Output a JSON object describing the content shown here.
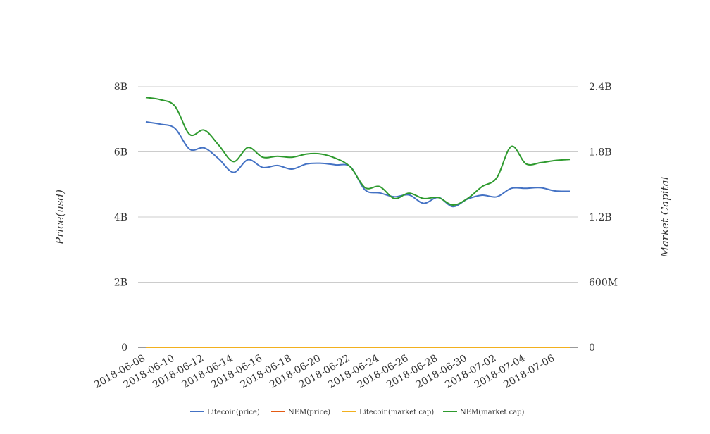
{
  "chart_data": {
    "type": "line",
    "title": "",
    "x": [
      "2018-06-08",
      "2018-06-09",
      "2018-06-10",
      "2018-06-11",
      "2018-06-12",
      "2018-06-13",
      "2018-06-14",
      "2018-06-15",
      "2018-06-16",
      "2018-06-17",
      "2018-06-18",
      "2018-06-19",
      "2018-06-20",
      "2018-06-21",
      "2018-06-22",
      "2018-06-23",
      "2018-06-24",
      "2018-06-25",
      "2018-06-26",
      "2018-06-27",
      "2018-06-28",
      "2018-06-29",
      "2018-06-30",
      "2018-07-01",
      "2018-07-02",
      "2018-07-03",
      "2018-07-04",
      "2018-07-05",
      "2018-07-06",
      "2018-07-07"
    ],
    "x_tick_labels": [
      "2018-06-08",
      "2018-06-10",
      "2018-06-12",
      "2018-06-14",
      "2018-06-16",
      "2018-06-18",
      "2018-06-20",
      "2018-06-22",
      "2018-06-24",
      "2018-06-26",
      "2018-06-28",
      "2018-06-30",
      "2018-07-02",
      "2018-07-04",
      "2018-07-06"
    ],
    "y_left": {
      "label": "Price(usd)",
      "ticks": [
        "0",
        "2B",
        "4B",
        "6B",
        "8B"
      ],
      "range": [
        0,
        8000000000
      ]
    },
    "y_right": {
      "label": "Market Capital",
      "ticks": [
        "0",
        "600M",
        "1.2B",
        "1.8B",
        "2.4B"
      ],
      "range": [
        0,
        2400000000
      ]
    },
    "grid": true,
    "legend_position": "bottom",
    "series": [
      {
        "name": "Litecoin(price)",
        "axis": "left",
        "color": "#4472C4",
        "values": [
          6920000000.0,
          6850000000.0,
          6720000000.0,
          6080000000.0,
          6120000000.0,
          5780000000.0,
          5370000000.0,
          5760000000.0,
          5520000000.0,
          5580000000.0,
          5470000000.0,
          5630000000.0,
          5650000000.0,
          5600000000.0,
          5540000000.0,
          4830000000.0,
          4740000000.0,
          4620000000.0,
          4680000000.0,
          4420000000.0,
          4600000000.0,
          4320000000.0,
          4550000000.0,
          4670000000.0,
          4620000000.0,
          4880000000.0,
          4880000000.0,
          4900000000.0,
          4800000000.0,
          4790000000.0
        ]
      },
      {
        "name": "NEM(price)",
        "axis": "left",
        "color": "#E45B13",
        "values": [
          0,
          0,
          0,
          0,
          0,
          0,
          0,
          0,
          0,
          0,
          0,
          0,
          0,
          0,
          0,
          0,
          0,
          0,
          0,
          0,
          0,
          0,
          0,
          0,
          0,
          0,
          0,
          0,
          0,
          0
        ]
      },
      {
        "name": "Litecoin(market cap)",
        "axis": "right",
        "color": "#F2B01E",
        "values": [
          0,
          0,
          0,
          0,
          0,
          0,
          0,
          0,
          0,
          0,
          0,
          0,
          0,
          0,
          0,
          0,
          0,
          0,
          0,
          0,
          0,
          0,
          0,
          0,
          0,
          0,
          0,
          0,
          0,
          0
        ]
      },
      {
        "name": "NEM(market cap)",
        "axis": "right",
        "color": "#2E9A2E",
        "values": [
          2300000000.0,
          2280000000.0,
          2220000000.0,
          1960000000.0,
          2000000000.0,
          1860000000.0,
          1710000000.0,
          1840000000.0,
          1750000000.0,
          1760000000.0,
          1750000000.0,
          1780000000.0,
          1780000000.0,
          1740000000.0,
          1660000000.0,
          1470000000.0,
          1480000000.0,
          1370000000.0,
          1420000000.0,
          1370000000.0,
          1380000000.0,
          1310000000.0,
          1370000000.0,
          1480000000.0,
          1560000000.0,
          1850000000.0,
          1690000000.0,
          1700000000.0,
          1720000000.0,
          1730000000.0
        ]
      }
    ]
  }
}
